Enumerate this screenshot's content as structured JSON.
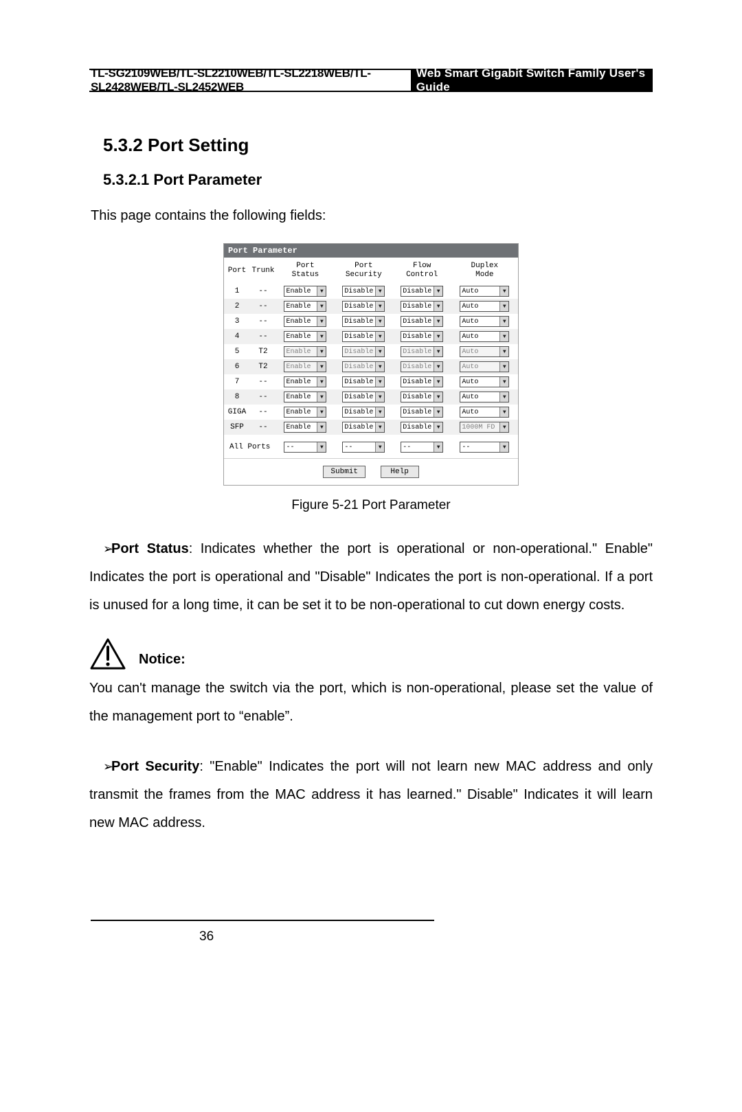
{
  "header": {
    "left": "TL-SG2109WEB/TL-SL2210WEB/TL-SL2218WEB/TL-SL2428WEB/TL-SL2452WEB",
    "right": "Web Smart Gigabit Switch Family User's Guide"
  },
  "section_heading": "5.3.2  Port Setting",
  "subsection_heading": "5.3.2.1  Port Parameter",
  "intro": "This page contains the following fields:",
  "panel": {
    "title": "Port Parameter",
    "columns": {
      "port": "Port",
      "trunk": "Trunk",
      "status": "Port\nStatus",
      "security": "Port\nSecurity",
      "flow": "Flow\nControl",
      "duplex": "Duplex\nMode"
    },
    "rows": [
      {
        "port": "1",
        "trunk": "--",
        "status": "Enable",
        "security": "Disable",
        "flow": "Disable",
        "duplex": "Auto",
        "disabled": false
      },
      {
        "port": "2",
        "trunk": "--",
        "status": "Enable",
        "security": "Disable",
        "flow": "Disable",
        "duplex": "Auto",
        "disabled": false
      },
      {
        "port": "3",
        "trunk": "--",
        "status": "Enable",
        "security": "Disable",
        "flow": "Disable",
        "duplex": "Auto",
        "disabled": false
      },
      {
        "port": "4",
        "trunk": "--",
        "status": "Enable",
        "security": "Disable",
        "flow": "Disable",
        "duplex": "Auto",
        "disabled": false
      },
      {
        "port": "5",
        "trunk": "T2",
        "status": "Enable",
        "security": "Disable",
        "flow": "Disable",
        "duplex": "Auto",
        "disabled": true
      },
      {
        "port": "6",
        "trunk": "T2",
        "status": "Enable",
        "security": "Disable",
        "flow": "Disable",
        "duplex": "Auto",
        "disabled": true
      },
      {
        "port": "7",
        "trunk": "--",
        "status": "Enable",
        "security": "Disable",
        "flow": "Disable",
        "duplex": "Auto",
        "disabled": false
      },
      {
        "port": "8",
        "trunk": "--",
        "status": "Enable",
        "security": "Disable",
        "flow": "Disable",
        "duplex": "Auto",
        "disabled": false
      },
      {
        "port": "GIGA",
        "trunk": "--",
        "status": "Enable",
        "security": "Disable",
        "flow": "Disable",
        "duplex": "Auto",
        "disabled": false
      },
      {
        "port": "SFP",
        "trunk": "--",
        "status": "Enable",
        "security": "Disable",
        "flow": "Disable",
        "duplex": "1000M FD",
        "disabled": false,
        "duplex_disabled": true
      }
    ],
    "all_ports": {
      "label": "All Ports",
      "status": "--",
      "security": "--",
      "flow": "--",
      "duplex": "--"
    },
    "buttons": {
      "submit": "Submit",
      "help": "Help"
    }
  },
  "figure_caption": "Figure 5-21  Port Parameter",
  "bullets": {
    "port_status_label": "Port Status",
    "port_status_text": ": Indicates whether the port is operational or non-operational.\" Enable\" Indicates the port is operational and \"Disable\" Indicates the port is non-operational. If a port is unused for a long time, it can be set it to be non-operational to cut down energy costs.",
    "port_security_label": "Port Security",
    "port_security_text": ":  \"Enable\" Indicates the port will not learn new MAC address and only transmit the frames from the MAC address it has learned.\" Disable\" Indicates it will learn new MAC address."
  },
  "notice": {
    "label": "Notice:",
    "body": "You can't manage the switch via the port, which is non-operational, please set the value of the management port to “enable”."
  },
  "page_number": "36",
  "colors": {
    "header_dark_bg": "#000000",
    "panel_title_bg": "#6f7276",
    "row_even_bg": "#f0f0f0",
    "dd_border": "#505050"
  }
}
